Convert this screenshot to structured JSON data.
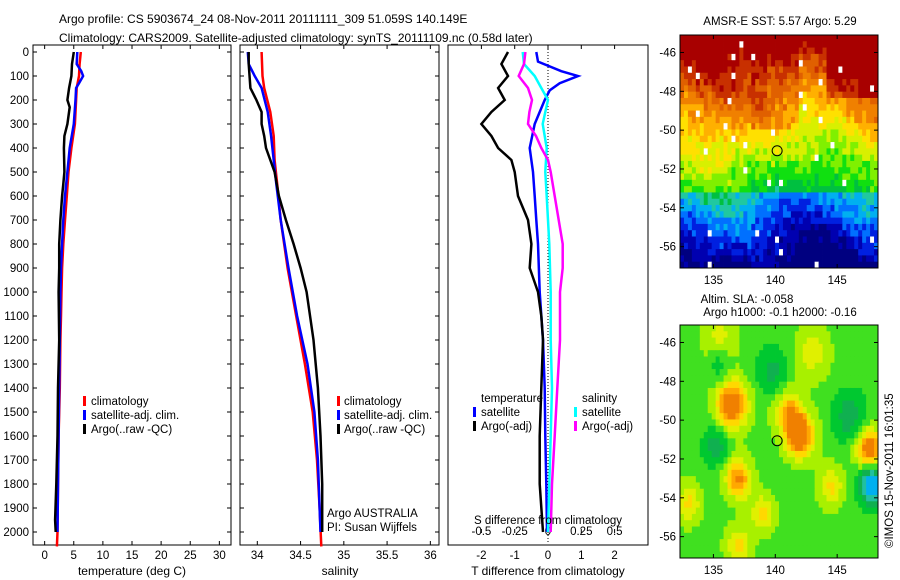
{
  "header": {
    "title_line1": "Argo profile: CS 5903674_24 08-Nov-2011 20111111_309 51.059S 140.149E",
    "title_line2": "Climatology: CARS2009. Satellite-adjusted climatology: synTS_20111109.nc (0.58d later)"
  },
  "colors": {
    "climatology": "#ff0000",
    "satellite": "#0000ff",
    "argo": "#000000",
    "salinity_satellite": "#00ffff",
    "salinity_argo": "#ff00ff"
  },
  "chart_data": [
    {
      "id": "temperature",
      "type": "line",
      "xlabel": "temperature (deg C)",
      "ylabel": "",
      "xlim": [
        -2,
        32
      ],
      "ylim": [
        2060,
        0
      ],
      "xticks": [
        0,
        5,
        10,
        15,
        20,
        25,
        30
      ],
      "yticks": [
        0,
        100,
        200,
        300,
        400,
        500,
        600,
        700,
        800,
        900,
        1000,
        1100,
        1200,
        1300,
        1400,
        1500,
        1600,
        1700,
        1800,
        1900,
        2000
      ],
      "legend": [
        "climatology",
        "satellite-adj. clim.",
        "Argo(..raw -QC)"
      ],
      "legend_position": "center",
      "series": [
        {
          "name": "climatology",
          "color": "#ff0000",
          "depth": [
            0,
            50,
            100,
            150,
            200,
            300,
            400,
            500,
            600,
            700,
            800,
            900,
            1000,
            1100,
            1200,
            1400,
            1600,
            1800,
            2000,
            2060
          ],
          "values": [
            6.2,
            6.0,
            5.9,
            5.5,
            5.4,
            5.2,
            4.6,
            4.1,
            3.8,
            3.5,
            3.2,
            3.0,
            2.9,
            2.8,
            2.7,
            2.6,
            2.4,
            2.3,
            2.2,
            2.1
          ]
        },
        {
          "name": "satellite-adj. clim.",
          "color": "#0000ff",
          "depth": [
            0,
            50,
            80,
            100,
            130,
            150,
            200,
            300,
            400,
            500,
            600,
            700,
            800,
            900,
            1000,
            1200,
            1400,
            1600,
            1800,
            2000
          ],
          "values": [
            5.6,
            5.5,
            6.3,
            6.6,
            5.9,
            5.4,
            5.3,
            5.0,
            4.3,
            3.9,
            3.5,
            3.2,
            3.0,
            2.8,
            2.7,
            2.6,
            2.5,
            2.4,
            2.3,
            2.2
          ]
        },
        {
          "name": "Argo(..raw -QC)",
          "color": "#000000",
          "depth": [
            0,
            50,
            100,
            150,
            200,
            230,
            300,
            350,
            400,
            500,
            550,
            600,
            700,
            800,
            900,
            1000,
            1200,
            1400,
            1600,
            1800,
            1950,
            2000
          ],
          "values": [
            5.0,
            4.7,
            4.6,
            4.2,
            3.9,
            4.3,
            3.9,
            3.4,
            3.3,
            3.4,
            3.2,
            3.0,
            2.7,
            2.5,
            2.5,
            2.4,
            2.5,
            2.3,
            2.2,
            2.0,
            1.8,
            1.9
          ]
        }
      ]
    },
    {
      "id": "salinity",
      "type": "line",
      "xlabel": "salinity",
      "ylabel": "",
      "xlim": [
        33.8,
        36.1
      ],
      "ylim": [
        2060,
        0
      ],
      "xticks": [
        34,
        34.5,
        35,
        35.5,
        36
      ],
      "xtick_labels": [
        "34",
        "34.5",
        "35",
        "35.5",
        "36"
      ],
      "legend": [
        "climatology",
        "satellite-adj. clim.",
        "Argo(..raw -QC)"
      ],
      "legend_position": "center-right",
      "annotations": [
        "Argo AUSTRALIA",
        "PI: Susan Wijffels"
      ],
      "series": [
        {
          "name": "climatology",
          "color": "#ff0000",
          "depth": [
            0,
            100,
            150,
            250,
            350,
            450,
            550,
            700,
            900,
            1100,
            1300,
            1500,
            1700,
            1900,
            2060
          ],
          "values": [
            34.05,
            34.06,
            34.08,
            34.15,
            34.19,
            34.2,
            34.23,
            34.27,
            34.35,
            34.45,
            34.55,
            34.64,
            34.69,
            34.72,
            34.74
          ]
        },
        {
          "name": "satellite-adj. clim.",
          "color": "#0000ff",
          "depth": [
            0,
            50,
            100,
            150,
            250,
            350,
            450,
            550,
            700,
            900,
            1100,
            1300,
            1500,
            1700,
            1900,
            2000
          ],
          "values": [
            33.89,
            33.9,
            33.97,
            34.05,
            34.12,
            34.16,
            34.19,
            34.22,
            34.27,
            34.36,
            34.46,
            34.58,
            34.66,
            34.7,
            34.72,
            34.73
          ]
        },
        {
          "name": "Argo(..raw -QC)",
          "color": "#000000",
          "depth": [
            0,
            50,
            150,
            200,
            250,
            300,
            350,
            400,
            450,
            500,
            600,
            700,
            800,
            900,
            1000,
            1200,
            1400,
            1600,
            1800,
            2000
          ],
          "values": [
            33.9,
            33.9,
            33.92,
            33.99,
            34.05,
            34.05,
            34.08,
            34.1,
            34.15,
            34.2,
            34.25,
            34.33,
            34.42,
            34.5,
            34.57,
            34.65,
            34.7,
            34.73,
            34.75,
            34.75
          ]
        }
      ]
    },
    {
      "id": "difference",
      "type": "line",
      "xlabel": "T difference from climatology",
      "xlabel_secondary": "S difference from climatology",
      "xlim": [
        -3,
        3
      ],
      "ylim": [
        2060,
        0
      ],
      "xticks_T": [
        -2,
        -1,
        0,
        1,
        2
      ],
      "xticks_S": [
        -0.5,
        -0.25,
        0,
        0.25,
        0.5
      ],
      "xtick_labels_S": [
        "-0.5",
        "-0.25",
        "0",
        "0.25",
        "0.5"
      ],
      "legend_groups": [
        {
          "title": "temperature",
          "items": [
            "satellite",
            "Argo(-adj)"
          ]
        },
        {
          "title": "salinity",
          "items": [
            "satellite",
            "Argo(-adj)"
          ]
        }
      ],
      "series": [
        {
          "name": "temperature satellite",
          "color": "#0000ff",
          "axis": "T",
          "depth": [
            0,
            40,
            80,
            100,
            130,
            160,
            200,
            250,
            300,
            400,
            500,
            600,
            700,
            800,
            1000,
            1200,
            1400,
            1600,
            1800,
            2000
          ],
          "values": [
            -0.35,
            -0.3,
            0.4,
            0.9,
            0.35,
            0.05,
            -0.1,
            -0.25,
            -0.4,
            -0.55,
            -0.45,
            -0.4,
            -0.35,
            -0.3,
            -0.25,
            -0.15,
            -0.1,
            -0.08,
            -0.05,
            -0.03
          ]
        },
        {
          "name": "temperature Argo(-adj)",
          "color": "#000000",
          "axis": "T",
          "depth": [
            0,
            50,
            100,
            150,
            200,
            250,
            300,
            350,
            400,
            450,
            500,
            600,
            700,
            800,
            900,
            1000,
            1100,
            1200,
            1400,
            1600,
            1800,
            2000
          ],
          "values": [
            -1.2,
            -1.4,
            -1.2,
            -1.5,
            -1.3,
            -1.7,
            -2.0,
            -1.7,
            -1.5,
            -1.1,
            -1.0,
            -0.9,
            -0.6,
            -0.5,
            -0.55,
            -0.3,
            -0.2,
            -0.15,
            -0.2,
            -0.25,
            -0.25,
            -0.15
          ]
        },
        {
          "name": "salinity satellite",
          "color": "#00ffff",
          "axis": "S",
          "depth": [
            0,
            50,
            100,
            150,
            200,
            250,
            300,
            400,
            500,
            600,
            800,
            1000,
            1200,
            1400,
            1600,
            1800,
            2000
          ],
          "values": [
            -0.19,
            -0.18,
            -0.1,
            -0.05,
            0.0,
            -0.02,
            -0.04,
            -0.01,
            -0.02,
            -0.01,
            0.01,
            0.02,
            0.02,
            0.03,
            0.02,
            0.01,
            0.0
          ]
        },
        {
          "name": "salinity Argo(-adj)",
          "color": "#ff00ff",
          "axis": "S",
          "depth": [
            0,
            50,
            100,
            150,
            200,
            250,
            300,
            350,
            400,
            450,
            500,
            600,
            700,
            800,
            900,
            1000,
            1200,
            1400,
            1600,
            1800,
            2000
          ],
          "values": [
            -0.17,
            -0.18,
            -0.22,
            -0.15,
            -0.12,
            -0.14,
            -0.15,
            -0.09,
            -0.05,
            0.0,
            0.02,
            0.05,
            0.08,
            0.11,
            0.11,
            0.09,
            0.09,
            0.07,
            0.05,
            0.03,
            0.02
          ]
        }
      ]
    },
    {
      "id": "sst-map",
      "type": "heatmap",
      "title": "AMSR-E SST: 5.57 Argo: 5.29",
      "xlim": [
        132.3,
        148.3
      ],
      "ylim": [
        -57.1,
        -45.1
      ],
      "xticks": [
        135,
        140,
        145
      ],
      "yticks": [
        -46,
        -48,
        -50,
        -52,
        -54,
        -56
      ],
      "marker": {
        "lon": 140.149,
        "lat": -51.059
      },
      "description": "SST field: warm (dark red) in the north-east, orange/yellow mid, green near -51, cyan/blue/dark blue south of -53"
    },
    {
      "id": "sla-map",
      "type": "heatmap",
      "title_line1": "Altim. SLA: -0.058",
      "title_line2": "Argo h1000: -0.1 h2000: -0.16",
      "xlim": [
        132.3,
        148.3
      ],
      "ylim": [
        -57.1,
        -45.1
      ],
      "xticks": [
        135,
        140,
        145
      ],
      "yticks": [
        -46,
        -48,
        -50,
        -52,
        -54,
        -56
      ],
      "marker": {
        "lon": 140.149,
        "lat": -51.059
      },
      "description": "SLA field: mostly green with orange highs near (136.5,-49.2), (142,-50.8), (147.5,-51.5), (137,-53) and a blue low near (147.5,-53.3)"
    }
  ],
  "footer": {
    "credit": "©IMOS 15-Nov-2011 16:01:35"
  }
}
